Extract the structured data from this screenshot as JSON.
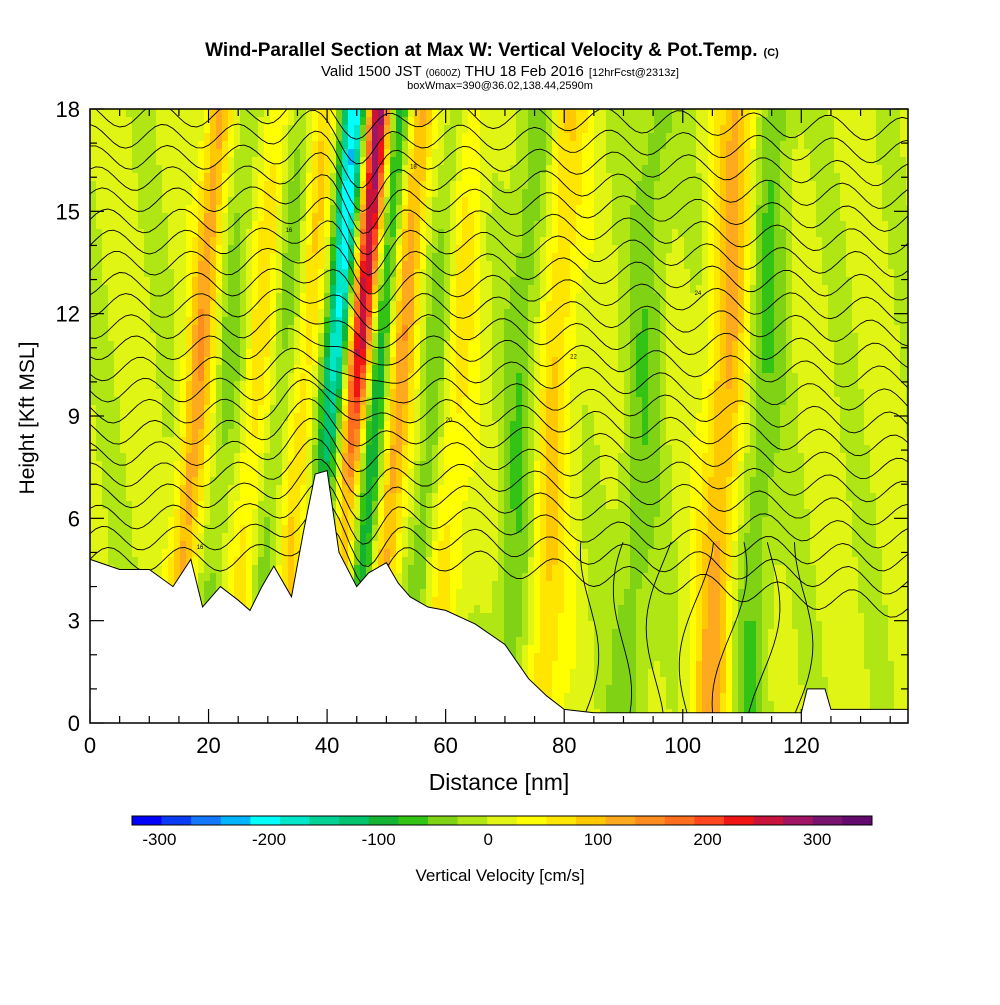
{
  "chart_data": {
    "type": "heatmap",
    "title": "Wind-Parallel Section at Max W: Vertical Velocity & Pot.Temp.",
    "title_mark": "(C)",
    "subtitle": {
      "valid": "Valid 1500 JST",
      "utc": "(0600Z)",
      "date": "THU 18 Feb 2016",
      "forecast": "[12hrFcst@2313z]"
    },
    "box_info": "boxWmax=390@36.02,138.44,2590m",
    "xlabel": "Distance [nm]",
    "ylabel": "Height [Kft MSL]",
    "xlim": [
      0,
      138
    ],
    "ylim": [
      0,
      18
    ],
    "x_ticks": [
      0,
      20,
      40,
      60,
      80,
      100,
      120
    ],
    "y_ticks": [
      0,
      3,
      6,
      9,
      12,
      15,
      18
    ],
    "colorbar": {
      "label": "Vertical Velocity [cm/s]",
      "tick_labels": [
        "-300",
        "-200",
        "-100",
        "0",
        "100",
        "200",
        "300"
      ],
      "tick_values": [
        -300,
        -200,
        -100,
        0,
        100,
        200,
        300
      ],
      "range": [
        -325,
        350
      ],
      "colors": [
        "#0000ff",
        "#0a3cf5",
        "#1478ff",
        "#00b4ff",
        "#00ffff",
        "#00e6c8",
        "#00d296",
        "#00c36e",
        "#14b432",
        "#32c314",
        "#7fd214",
        "#afe614",
        "#e1f514",
        "#ffff00",
        "#ffe600",
        "#ffc800",
        "#ffaa1e",
        "#ff8c1e",
        "#ff6e1e",
        "#ff461e",
        "#f01414",
        "#c8143c",
        "#a01464",
        "#78146e",
        "#640a6e"
      ]
    },
    "updraft_bands": [
      {
        "x": 16,
        "w": 120
      },
      {
        "x": 26,
        "w": 60
      },
      {
        "x": 34,
        "w": 70
      },
      {
        "x": 43,
        "w": 300
      },
      {
        "x": 50,
        "w": 120
      },
      {
        "x": 60,
        "w": 60
      },
      {
        "x": 77,
        "w": 80
      },
      {
        "x": 106,
        "w": 110
      }
    ],
    "downdraft_bands": [
      {
        "x": 21,
        "w": -40
      },
      {
        "x": 30,
        "w": -40
      },
      {
        "x": 39,
        "w": -220
      },
      {
        "x": 46,
        "w": -130
      },
      {
        "x": 56,
        "w": -70
      },
      {
        "x": 72,
        "w": -60
      },
      {
        "x": 92,
        "w": -50
      },
      {
        "x": 112,
        "w": -60
      }
    ],
    "terrain_kft": [
      [
        0,
        4.8
      ],
      [
        5,
        4.5
      ],
      [
        10,
        4.5
      ],
      [
        14,
        4.0
      ],
      [
        17,
        4.8
      ],
      [
        19,
        3.4
      ],
      [
        22,
        4.0
      ],
      [
        25,
        3.6
      ],
      [
        27,
        3.3
      ],
      [
        29,
        4.0
      ],
      [
        31,
        4.6
      ],
      [
        34,
        3.7
      ],
      [
        36,
        5.6
      ],
      [
        38,
        7.3
      ],
      [
        40,
        7.4
      ],
      [
        42,
        5.0
      ],
      [
        45,
        4.0
      ],
      [
        47,
        4.4
      ],
      [
        50,
        4.7
      ],
      [
        52,
        4.1
      ],
      [
        54,
        3.7
      ],
      [
        57,
        3.4
      ],
      [
        60,
        3.3
      ],
      [
        65,
        2.9
      ],
      [
        70,
        2.3
      ],
      [
        74,
        1.3
      ],
      [
        77,
        0.8
      ],
      [
        80,
        0.4
      ],
      [
        85,
        0.3
      ],
      [
        100,
        0.3
      ],
      [
        120,
        0.3
      ],
      [
        121,
        1.0
      ],
      [
        124,
        1.0
      ],
      [
        125,
        0.4
      ],
      [
        138,
        0.4
      ]
    ],
    "isentrope_labels": [
      "16",
      "18",
      "20",
      "22",
      "24"
    ]
  }
}
